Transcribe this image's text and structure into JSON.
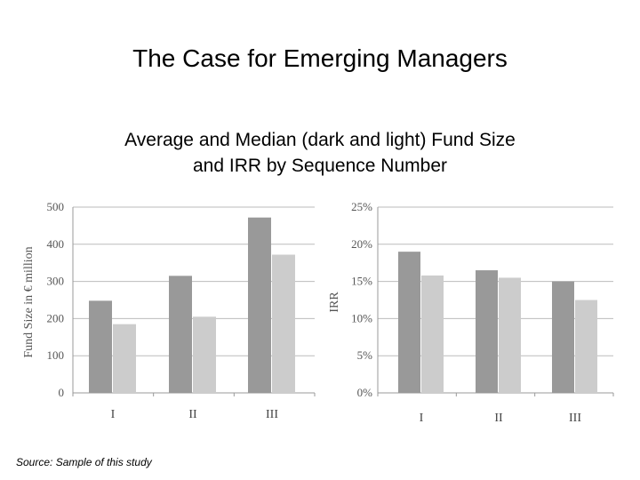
{
  "slide": {
    "title": "The Case for Emerging Managers",
    "subtitle_line1": "Average and Median (dark and light) Fund Size",
    "subtitle_line2": "and IRR by Sequence Number",
    "source": "Source: Sample of this study"
  },
  "colors": {
    "dark": "#999999",
    "light": "#cccccc",
    "grid": "#bbbbbb"
  },
  "chart_data": [
    {
      "type": "bar",
      "categories": [
        "I",
        "II",
        "III"
      ],
      "series": [
        {
          "values": [
            248,
            315,
            472
          ]
        },
        {
          "values": [
            185,
            205,
            372
          ]
        }
      ],
      "ylabel": "Fund Size in € million",
      "ylim": [
        0,
        500
      ],
      "yticks": [
        "0",
        "100",
        "200",
        "300",
        "400",
        "500"
      ],
      "ytick_values": [
        0,
        100,
        200,
        300,
        400,
        500
      ],
      "grid": true
    },
    {
      "type": "bar",
      "categories": [
        "I",
        "II",
        "III"
      ],
      "series": [
        {
          "values": [
            19.0,
            16.5,
            15.0
          ]
        },
        {
          "values": [
            15.8,
            15.5,
            12.5
          ]
        }
      ],
      "ylabel": "IRR",
      "ylim": [
        0,
        25
      ],
      "yticks": [
        "0%",
        "5%",
        "10%",
        "15%",
        "20%",
        "25%"
      ],
      "ytick_values": [
        0,
        5,
        10,
        15,
        20,
        25
      ],
      "grid": true
    }
  ]
}
